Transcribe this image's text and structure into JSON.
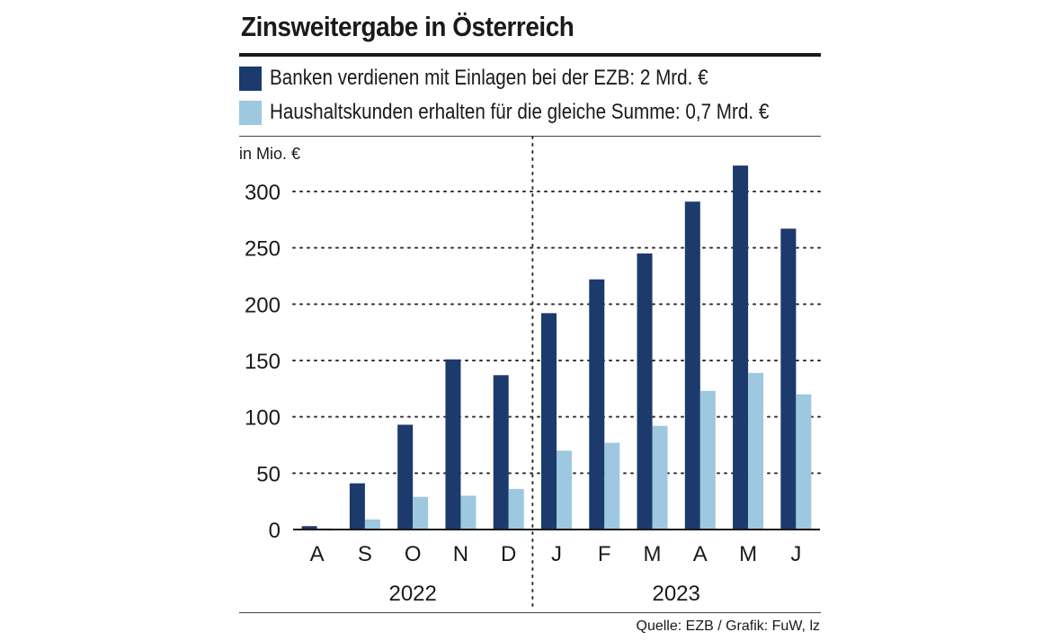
{
  "chart_data": {
    "type": "bar",
    "title": "Zinsweitergabe in Österreich",
    "ylabel": "in Mio. €",
    "ylim": [
      0,
      300
    ],
    "yticks": [
      0,
      50,
      100,
      150,
      200,
      250,
      300
    ],
    "categories": [
      "A",
      "S",
      "O",
      "N",
      "D",
      "J",
      "F",
      "M",
      "A",
      "M",
      "J"
    ],
    "year_groups": [
      {
        "label": "2022",
        "count": 5
      },
      {
        "label": "2023",
        "count": 6
      }
    ],
    "series": [
      {
        "name": "Banken verdienen mit Einlagen bei der EZB: 2 Mrd. €",
        "color": "#1c3a6b",
        "values": [
          3,
          41,
          93,
          151,
          137,
          192,
          222,
          245,
          291,
          323,
          267
        ]
      },
      {
        "name": "Haushaltskunden erhalten für die gleiche Summe: 0,7 Mrd. €",
        "color": "#9dc8e0",
        "values": [
          1,
          9,
          29,
          30,
          36,
          70,
          77,
          92,
          123,
          139,
          120
        ]
      }
    ],
    "grid": true,
    "legend": "top",
    "source": "Quelle: EZB / Grafik: FuW, lz"
  }
}
